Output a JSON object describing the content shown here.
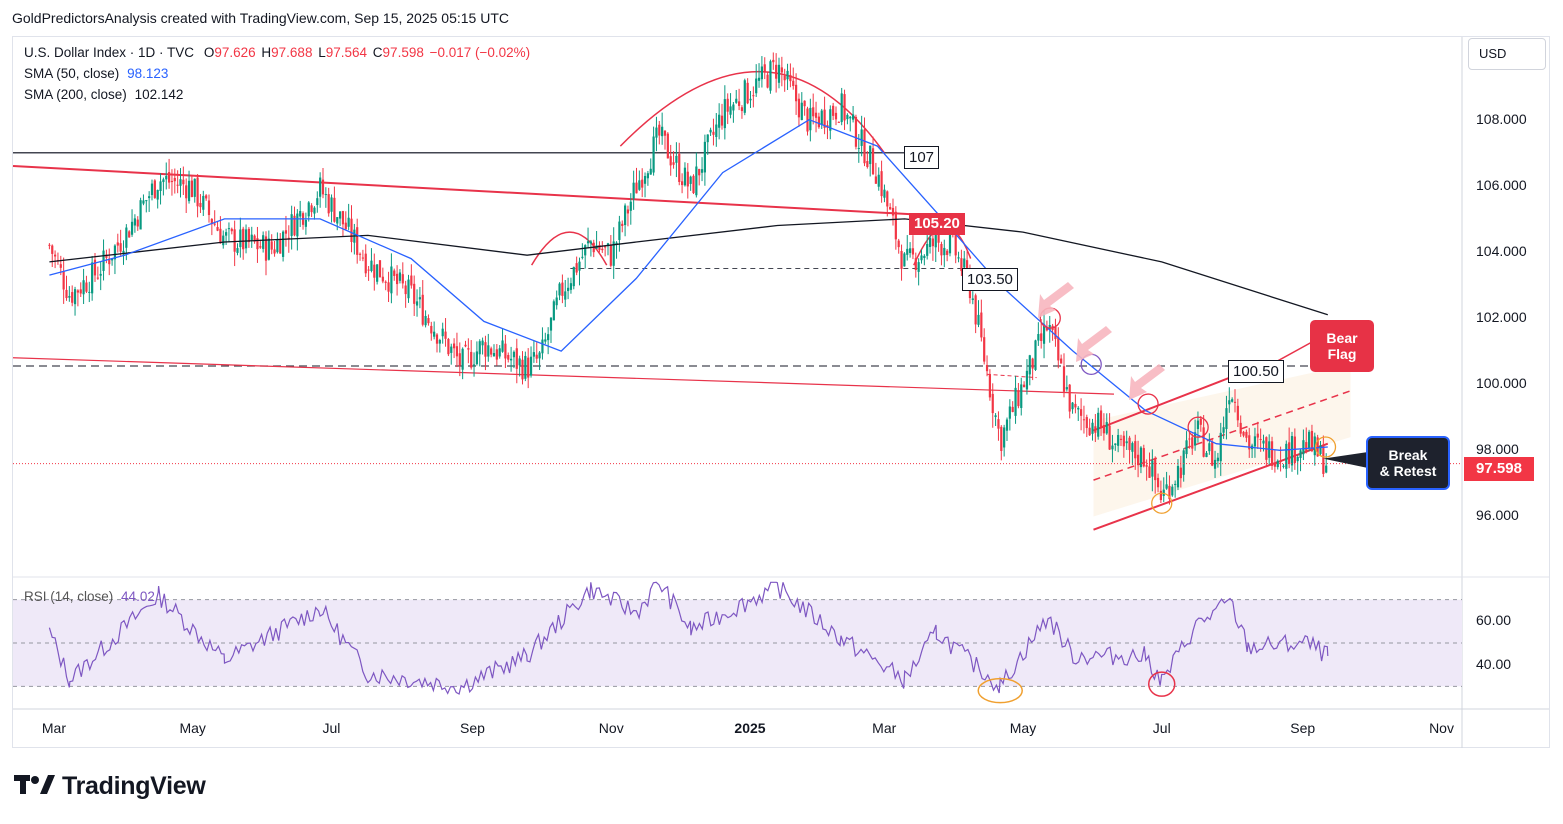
{
  "header": {
    "text": "GoldPredictorsAnalysis created with TradingView.com, Sep 15, 2025 05:15 UTC"
  },
  "legend": {
    "symbol": "U.S. Dollar Index · 1D · TVC",
    "ohlc": [
      {
        "k": "O",
        "v": "97.626"
      },
      {
        "k": "H",
        "v": "97.688"
      },
      {
        "k": "L",
        "v": "97.564"
      },
      {
        "k": "C",
        "v": "97.598"
      }
    ],
    "change": "−0.017 (−0.02%)",
    "sma50_label": "SMA (50, close)",
    "sma50_value": "98.123",
    "sma200_label": "SMA (200, close)",
    "sma200_value": "102.142",
    "rsi_label": "RSI (14, close)",
    "rsi_value": "44.02"
  },
  "currency_button": "USD",
  "last_price": "97.598",
  "annotations": {
    "level_107": "107",
    "level_105_20": "105.20",
    "level_103_50": "103.50",
    "level_100_50": "100.50",
    "bear_flag_1": "Bear",
    "bear_flag_2": "Flag",
    "break_retest_1": "Break",
    "break_retest_2": "& Retest"
  },
  "brand": "TradingView",
  "colors": {
    "up": "#089981",
    "down": "#f23645",
    "sma50": "#2962ff",
    "sma200": "#131722",
    "rsi": "#7e57c2",
    "trend_red": "#e8334a",
    "rsi_band": "#efe9f8",
    "flag_zone": "#fdf6ec"
  },
  "chart_data": [
    {
      "type": "candlestick",
      "title": "U.S. Dollar Index · 1D · TVC",
      "x_ticks": [
        "Mar",
        "May",
        "Jul",
        "Sep",
        "Nov",
        "2025",
        "Mar",
        "May",
        "Jul",
        "Sep",
        "Nov"
      ],
      "y_ticks": [
        "96.000",
        "98.000",
        "100.000",
        "102.000",
        "104.000",
        "106.000",
        "108.000"
      ],
      "ylim": [
        94.2,
        110.5
      ],
      "close_path": [
        [
          "2024-02-28",
          104.2
        ],
        [
          "2024-03-08",
          102.7
        ],
        [
          "2024-03-20",
          103.4
        ],
        [
          "2024-04-01",
          104.5
        ],
        [
          "2024-04-16",
          106.2
        ],
        [
          "2024-04-30",
          106.0
        ],
        [
          "2024-05-15",
          104.4
        ],
        [
          "2024-06-05",
          104.1
        ],
        [
          "2024-06-26",
          105.9
        ],
        [
          "2024-07-05",
          105.0
        ],
        [
          "2024-07-17",
          103.7
        ],
        [
          "2024-08-05",
          102.7
        ],
        [
          "2024-08-27",
          100.6
        ],
        [
          "2024-09-06",
          101.2
        ],
        [
          "2024-09-25",
          100.5
        ],
        [
          "2024-10-01",
          100.8
        ],
        [
          "2024-10-10",
          102.8
        ],
        [
          "2024-10-23",
          104.3
        ],
        [
          "2024-11-01",
          103.9
        ],
        [
          "2024-11-12",
          106.0
        ],
        [
          "2024-11-22",
          107.5
        ],
        [
          "2024-12-06",
          105.9
        ],
        [
          "2024-12-20",
          108.2
        ],
        [
          "2025-01-13",
          109.6
        ],
        [
          "2025-01-27",
          107.9
        ],
        [
          "2025-02-10",
          108.4
        ],
        [
          "2025-02-26",
          106.4
        ],
        [
          "2025-03-10",
          103.6
        ],
        [
          "2025-03-24",
          104.3
        ],
        [
          "2025-03-31",
          104.2
        ],
        [
          "2025-04-08",
          102.9
        ],
        [
          "2025-04-21",
          98.3
        ],
        [
          "2025-05-01",
          100.0
        ],
        [
          "2025-05-12",
          101.8
        ],
        [
          "2025-05-23",
          99.1
        ],
        [
          "2025-06-05",
          98.7
        ],
        [
          "2025-06-12",
          98.0
        ],
        [
          "2025-06-24",
          97.8
        ],
        [
          "2025-07-01",
          96.6
        ],
        [
          "2025-07-10",
          97.6
        ],
        [
          "2025-07-16",
          98.6
        ],
        [
          "2025-07-25",
          97.6
        ],
        [
          "2025-07-31",
          100.0
        ],
        [
          "2025-08-08",
          98.2
        ],
        [
          "2025-08-22",
          97.9
        ],
        [
          "2025-09-03",
          98.2
        ],
        [
          "2025-09-12",
          97.6
        ]
      ],
      "sma50_path": [
        [
          "2024-02-28",
          103.3
        ],
        [
          "2024-04-01",
          103.9
        ],
        [
          "2024-05-15",
          105.0
        ],
        [
          "2024-06-26",
          105.0
        ],
        [
          "2024-08-05",
          103.8
        ],
        [
          "2024-09-06",
          101.9
        ],
        [
          "2024-10-10",
          101.0
        ],
        [
          "2024-11-12",
          103.2
        ],
        [
          "2024-12-20",
          106.4
        ],
        [
          "2025-01-27",
          108.0
        ],
        [
          "2025-02-26",
          107.2
        ],
        [
          "2025-03-24",
          105.2
        ],
        [
          "2025-04-21",
          103.0
        ],
        [
          "2025-05-23",
          101.0
        ],
        [
          "2025-06-24",
          99.2
        ],
        [
          "2025-07-25",
          98.2
        ],
        [
          "2025-08-22",
          98.0
        ],
        [
          "2025-09-12",
          98.1
        ]
      ],
      "sma200_path": [
        [
          "2024-02-28",
          103.7
        ],
        [
          "2024-05-15",
          104.3
        ],
        [
          "2024-07-17",
          104.5
        ],
        [
          "2024-09-25",
          103.9
        ],
        [
          "2024-11-12",
          104.3
        ],
        [
          "2025-01-13",
          104.8
        ],
        [
          "2025-03-10",
          105.0
        ],
        [
          "2025-05-01",
          104.6
        ],
        [
          "2025-07-01",
          103.7
        ],
        [
          "2025-09-12",
          102.1
        ]
      ],
      "sma50_value": 98.123,
      "sma200_value": 102.142,
      "levels": [
        107,
        105.2,
        103.5,
        100.5
      ],
      "last_price": 97.598
    },
    {
      "type": "line",
      "title": "RSI (14, close)",
      "y_ticks": [
        "40.00",
        "60.00"
      ],
      "bands": [
        30,
        70
      ],
      "midline": 50,
      "ylim": [
        20,
        80
      ],
      "rsi_path": [
        [
          "2024-02-28",
          55
        ],
        [
          "2024-03-08",
          33
        ],
        [
          "2024-04-16",
          72
        ],
        [
          "2024-05-15",
          42
        ],
        [
          "2024-06-26",
          66
        ],
        [
          "2024-07-17",
          36
        ],
        [
          "2024-08-27",
          30
        ],
        [
          "2024-09-25",
          44
        ],
        [
          "2024-10-23",
          75
        ],
        [
          "2024-11-12",
          64
        ],
        [
          "2024-11-22",
          78
        ],
        [
          "2024-12-06",
          56
        ],
        [
          "2025-01-13",
          76
        ],
        [
          "2025-02-10",
          52
        ],
        [
          "2025-03-10",
          33
        ],
        [
          "2025-03-24",
          55
        ],
        [
          "2025-04-21",
          30
        ],
        [
          "2025-05-12",
          62
        ],
        [
          "2025-05-23",
          44
        ],
        [
          "2025-06-24",
          44
        ],
        [
          "2025-07-01",
          32
        ],
        [
          "2025-07-16",
          58
        ],
        [
          "2025-07-31",
          69
        ],
        [
          "2025-08-08",
          48
        ],
        [
          "2025-09-03",
          50
        ],
        [
          "2025-09-12",
          44
        ]
      ],
      "last_value": 44.02
    }
  ]
}
